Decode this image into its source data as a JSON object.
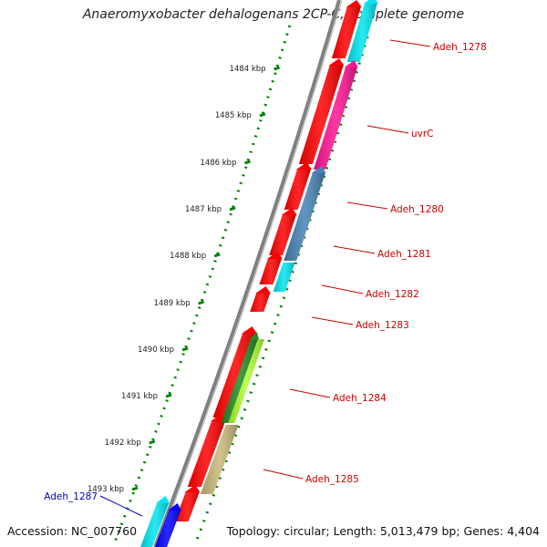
{
  "title": "Anaeromyxobacter dehalogenans 2CP-C, complete genome",
  "accession": "Accession: NC_007760",
  "topology": "Topology: circular; Length: 5,013,479 bp; Genes: 4,404",
  "ticks": [
    "1484 kbp",
    "1485 kbp",
    "1486 kbp",
    "1487 kbp",
    "1488 kbp",
    "1489 kbp",
    "1490 kbp",
    "1491 kbp",
    "1492 kbp",
    "1493 kbp"
  ],
  "genes": [
    {
      "label": "Adeh_1278",
      "color": "#cc0000",
      "strand": "+"
    },
    {
      "label": "uvrC",
      "color": "#cc0000",
      "strand": "+"
    },
    {
      "label": "Adeh_1280",
      "color": "#cc0000",
      "strand": "+"
    },
    {
      "label": "Adeh_1281",
      "color": "#cc0000",
      "strand": "+"
    },
    {
      "label": "Adeh_1282",
      "color": "#cc0000",
      "strand": "+"
    },
    {
      "label": "Adeh_1283",
      "color": "#cc0000",
      "strand": "+"
    },
    {
      "label": "Adeh_1284",
      "color": "#cc0000",
      "strand": "+"
    },
    {
      "label": "Adeh_1285",
      "color": "#cc0000",
      "strand": "+"
    },
    {
      "label": "Adeh_1287",
      "color": "#0000cc",
      "strand": "-"
    }
  ],
  "feature_colors": {
    "cds": "#ff0000",
    "cyan": "#00e5ee",
    "magenta": "#ff1493",
    "steelblue": "#4682b4",
    "green": "#228b22",
    "lime": "#adff2f",
    "khaki": "#c8b878",
    "blue": "#0000ff",
    "backbone": "#808080",
    "tick": "#008000"
  }
}
